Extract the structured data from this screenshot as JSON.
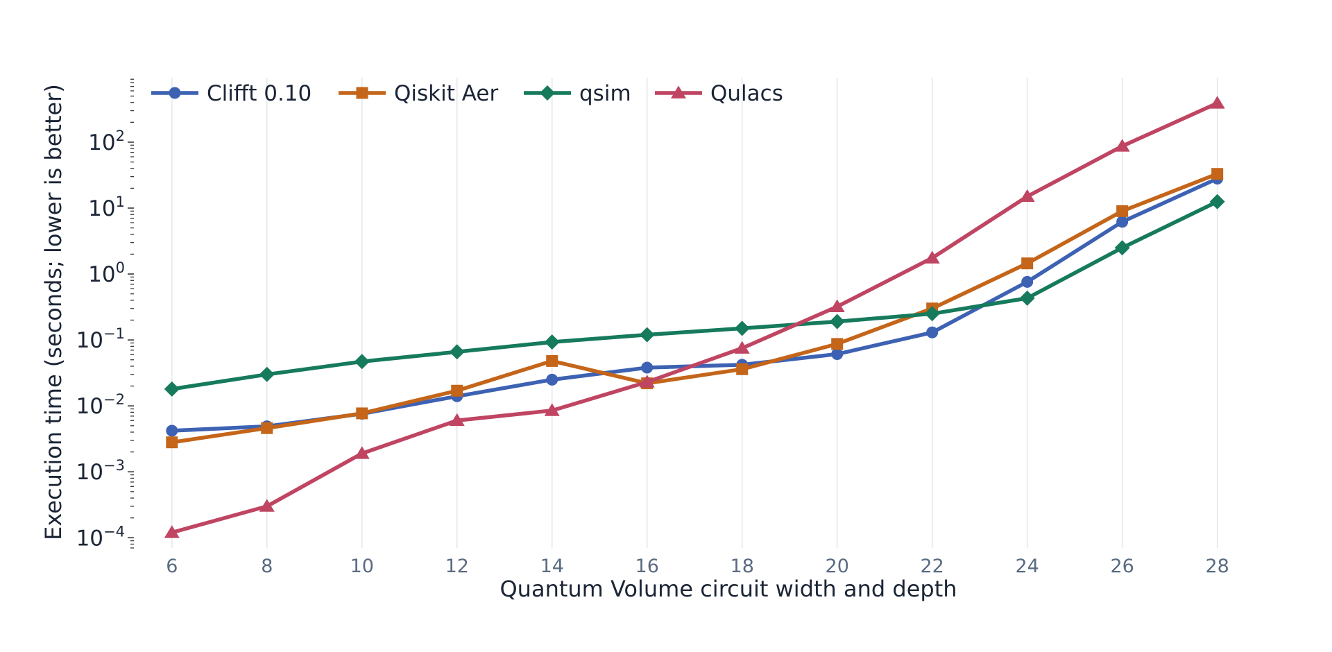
{
  "chart_data": {
    "type": "line",
    "xlabel": "Quantum Volume circuit width and depth",
    "ylabel": "Execution time (seconds; lower is better)",
    "y_scale": "log",
    "grid": "vertical",
    "legend_placement": "top-left",
    "x": [
      6,
      8,
      10,
      12,
      14,
      16,
      18,
      20,
      22,
      24,
      26,
      28
    ],
    "x_tick_labels": [
      "6",
      "8",
      "10",
      "12",
      "14",
      "16",
      "18",
      "20",
      "22",
      "24",
      "26",
      "28"
    ],
    "y_ticks": [
      {
        "value": 0.0001,
        "base": "10",
        "exp": "−4"
      },
      {
        "value": 0.001,
        "base": "10",
        "exp": "−3"
      },
      {
        "value": 0.01,
        "base": "10",
        "exp": "−2"
      },
      {
        "value": 0.1,
        "base": "10",
        "exp": "−1"
      },
      {
        "value": 1,
        "base": "10",
        "exp": "0"
      },
      {
        "value": 10,
        "base": "10",
        "exp": "1"
      },
      {
        "value": 100,
        "base": "10",
        "exp": "2"
      }
    ],
    "xlim": [
      5.2,
      29.1
    ],
    "ylim": [
      7e-05,
      950
    ],
    "series": [
      {
        "name": "Clifft 0.10",
        "color": "#3d62b3",
        "marker": "circle",
        "values": [
          0.0042,
          0.0049,
          0.0076,
          0.014,
          0.025,
          0.038,
          0.042,
          0.061,
          0.13,
          0.76,
          6.2,
          28
        ]
      },
      {
        "name": "Qiskit Aer",
        "color": "#c4651a",
        "marker": "square",
        "values": [
          0.0028,
          0.0046,
          0.0077,
          0.017,
          0.048,
          0.022,
          0.036,
          0.087,
          0.3,
          1.45,
          9.0,
          33
        ]
      },
      {
        "name": "qsim",
        "color": "#167a5c",
        "marker": "diamond",
        "values": [
          0.018,
          0.03,
          0.047,
          0.066,
          0.093,
          0.12,
          0.15,
          0.19,
          0.25,
          0.43,
          2.5,
          12.5
        ]
      },
      {
        "name": "Qulacs",
        "color": "#bf4562",
        "marker": "triangle",
        "values": [
          0.00012,
          0.0003,
          0.0019,
          0.006,
          0.0085,
          0.023,
          0.075,
          0.32,
          1.75,
          15,
          87,
          390
        ]
      }
    ]
  }
}
